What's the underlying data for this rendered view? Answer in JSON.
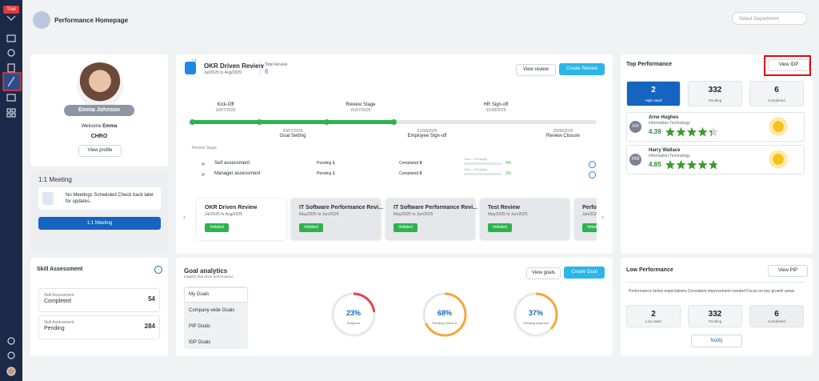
{
  "sidebar": {
    "badge": "Trial"
  },
  "header": {
    "title": "Performance Homepage",
    "select_placeholder": "Select Department"
  },
  "profile": {
    "name": "Emma Johnson",
    "welcome_prefix": "Welcome",
    "welcome_name": "Emma",
    "role": "CHRO",
    "button": "View profile"
  },
  "meeting": {
    "title": "1:1 Meeting",
    "message": "No Meetings Scheduled Check back later for updates.",
    "button": "1:1 Meeting"
  },
  "skill": {
    "title": "Skill Assessment",
    "rows": [
      {
        "label": "Skill Assessment",
        "status": "Completed",
        "value": 54
      },
      {
        "label": "Skill Assessment",
        "status": "Pending",
        "value": 284
      }
    ]
  },
  "okr": {
    "title": "OKR Driven Review",
    "dates": "Jul/2025 to Aug/2025",
    "badge": "13",
    "total_label": "Total Review",
    "total": 6,
    "view_button": "View review",
    "create_button": "Create Review",
    "milestones_top": [
      {
        "label": "Kick-Off",
        "date": "16/07/2025"
      },
      {
        "label": "Review Stage",
        "date": "01/07/2025"
      },
      {
        "label": "HR Sign-off",
        "date": "31/08/2025"
      }
    ],
    "milestones_bottom": [
      {
        "label": "Goal Setting",
        "date": "20/07/2025"
      },
      {
        "label": "Employee Sign-off",
        "date": "21/08/2025"
      },
      {
        "label": "Review Closure",
        "date": "15/08/2025"
      }
    ],
    "stage_title": "Review Stage",
    "stages": [
      {
        "name": "Self assessment",
        "pending_label": "Pending",
        "pending": 1,
        "completed_label": "Completed",
        "completed": 0,
        "time": "Time = 1:00 day(s)",
        "percent": "0%"
      },
      {
        "name": "Manager assessment",
        "pending_label": "Pending",
        "pending": 1,
        "completed_label": "Completed",
        "completed": 0,
        "time": "Time = 1:00 day(s)",
        "percent": "0%"
      }
    ],
    "cards": [
      {
        "title": "OKR Driven Review",
        "dates": "Jul/2025 to Aug/2025",
        "status": "Initiated"
      },
      {
        "title": "IT Software Performance Revi...",
        "dates": "May/2025 to Jun/2025",
        "status": "Initiated"
      },
      {
        "title": "IT Software Performance Revi...",
        "dates": "May/2025 to Jun/2025",
        "status": "Initiated"
      },
      {
        "title": "Test Review",
        "dates": "May/2025 to Jun/2025",
        "status": "Initiated"
      },
      {
        "title": "Perform",
        "dates": "Jan/2025",
        "status": "Initiated"
      }
    ]
  },
  "goals": {
    "title": "Goal analytics",
    "subtitle": "Insights that drive performance",
    "view_button": "View goals",
    "create_button": "Create Goal",
    "tabs": [
      "My Goals",
      "Company-wide Goals",
      "PIP Goals",
      "IDP Goals"
    ],
    "rings": [
      {
        "value": 23,
        "value_label": "23%",
        "caption": "Progress",
        "color": "#e8414a"
      },
      {
        "value": 68,
        "value_label": "68%",
        "caption": "Pending Check-in",
        "color": "#f5a73b"
      },
      {
        "value": 37,
        "value_label": "37%",
        "caption": "Pending Approval",
        "color": "#f5a73b"
      }
    ]
  },
  "top": {
    "title": "Top Performance",
    "button": "View IDP",
    "stats": [
      {
        "value": 2,
        "label": "High rated"
      },
      {
        "value": 332,
        "label": "Pending"
      },
      {
        "value": 6,
        "label": "Completed"
      }
    ],
    "people": [
      {
        "initials": "AH",
        "name": "Arne Hughes",
        "dept": "Information Technology",
        "rating": 4.39
      },
      {
        "initials": "HW",
        "name": "Harry Wallace",
        "dept": "Information Technology",
        "rating": 4.85
      }
    ]
  },
  "low": {
    "title": "Low Performance",
    "button": "View PIP",
    "message": "Performance below expectations Consistent improvement needed Focus on key growth areas",
    "stats": [
      {
        "value": 2,
        "label": "Low rated"
      },
      {
        "value": 332,
        "label": "Pending"
      },
      {
        "value": 6,
        "label": "Completed"
      }
    ],
    "notify": "Notify"
  }
}
